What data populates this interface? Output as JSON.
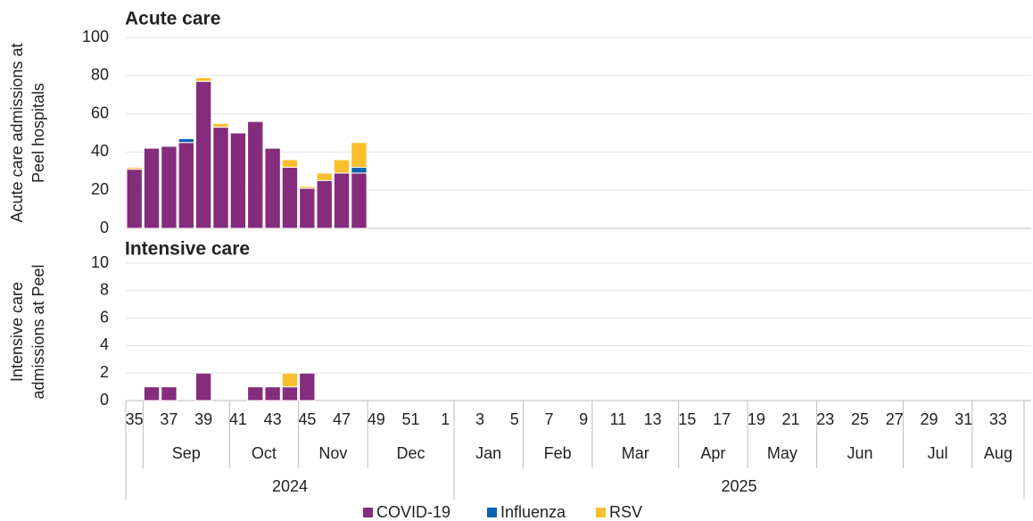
{
  "chart_data": [
    {
      "type": "bar",
      "stacked": true,
      "title": "Acute care",
      "ylabel": [
        "Acute care admissions at",
        "Peel hospitals"
      ],
      "ylim": [
        0,
        100
      ],
      "yticks": [
        0,
        20,
        40,
        60,
        80,
        100
      ],
      "grid": true,
      "series": [
        {
          "name": "COVID-19",
          "color": "#852c7c",
          "values": [
            31,
            42,
            43,
            45,
            77,
            53,
            50,
            56,
            42,
            32,
            21,
            25,
            29,
            29,
            null,
            null,
            null,
            null,
            null,
            null,
            null,
            null,
            null,
            null,
            null,
            null,
            null,
            null,
            null,
            null,
            null,
            null,
            null,
            null,
            null,
            null,
            null,
            null,
            null,
            null,
            null,
            null,
            null,
            null,
            null,
            null,
            null,
            null,
            null,
            null,
            null,
            null
          ]
        },
        {
          "name": "Influenza",
          "color": "#0b62b0",
          "values": [
            0,
            0,
            0,
            2,
            0,
            0,
            0,
            0,
            0,
            0,
            0,
            0,
            0,
            3,
            null,
            null,
            null,
            null,
            null,
            null,
            null,
            null,
            null,
            null,
            null,
            null,
            null,
            null,
            null,
            null,
            null,
            null,
            null,
            null,
            null,
            null,
            null,
            null,
            null,
            null,
            null,
            null,
            null,
            null,
            null,
            null,
            null,
            null,
            null,
            null,
            null,
            null
          ]
        },
        {
          "name": "RSV",
          "color": "#f9bf2d",
          "values": [
            1,
            0,
            0,
            0,
            2,
            2,
            0,
            0,
            0,
            4,
            1,
            4,
            7,
            13,
            null,
            null,
            null,
            null,
            null,
            null,
            null,
            null,
            null,
            null,
            null,
            null,
            null,
            null,
            null,
            null,
            null,
            null,
            null,
            null,
            null,
            null,
            null,
            null,
            null,
            null,
            null,
            null,
            null,
            null,
            null,
            null,
            null,
            null,
            null,
            null,
            null,
            null
          ]
        }
      ]
    },
    {
      "type": "bar",
      "stacked": true,
      "title": "Intensive care",
      "ylabel": [
        "Intensive care",
        "admissions at Peel"
      ],
      "ylim": [
        0,
        10
      ],
      "yticks": [
        0,
        2,
        4,
        6,
        8,
        10
      ],
      "grid": true,
      "categories": [
        "35",
        null,
        "37",
        null,
        "39",
        null,
        "41",
        null,
        "43",
        null,
        "45",
        null,
        "47",
        null,
        "49",
        null,
        "51",
        null,
        "1",
        null,
        "3",
        null,
        "5",
        null,
        "7",
        null,
        "9",
        null,
        "11",
        null,
        "13",
        null,
        "15",
        null,
        "17",
        null,
        "19",
        null,
        "21",
        null,
        "23",
        null,
        "25",
        null,
        "27",
        null,
        "29",
        null,
        "31",
        null,
        "33",
        null
      ],
      "month_groups": [
        {
          "label": null,
          "span": 1
        },
        {
          "label": "Sep",
          "span": 5
        },
        {
          "label": "Oct",
          "span": 4
        },
        {
          "label": "Nov",
          "span": 4
        },
        {
          "label": "Dec",
          "span": 5
        },
        {
          "label": "Jan",
          "span": 4
        },
        {
          "label": "Feb",
          "span": 4
        },
        {
          "label": "Mar",
          "span": 5
        },
        {
          "label": "Apr",
          "span": 4
        },
        {
          "label": "May",
          "span": 4
        },
        {
          "label": "Jun",
          "span": 5
        },
        {
          "label": "Jul",
          "span": 4
        },
        {
          "label": "Aug",
          "span": 3
        }
      ],
      "year_groups": [
        {
          "label": "2024",
          "span": 19
        },
        {
          "label": "2025",
          "span": 33
        }
      ],
      "series": [
        {
          "values": [
            0,
            1,
            1,
            0,
            2,
            0,
            0,
            1,
            1,
            1,
            2,
            0,
            0,
            0,
            null,
            null,
            null,
            null,
            null,
            null,
            null,
            null,
            null,
            null,
            null,
            null,
            null,
            null,
            null,
            null,
            null,
            null,
            null,
            null,
            null,
            null,
            null,
            null,
            null,
            null,
            null,
            null,
            null,
            null,
            null,
            null,
            null,
            null,
            null,
            null,
            null,
            null
          ]
        },
        {
          "values": [
            0,
            0,
            0,
            0,
            0,
            0,
            0,
            0,
            0,
            0,
            0,
            0,
            0,
            0,
            null,
            null,
            null,
            null,
            null,
            null,
            null,
            null,
            null,
            null,
            null,
            null,
            null,
            null,
            null,
            null,
            null,
            null,
            null,
            null,
            null,
            null,
            null,
            null,
            null,
            null,
            null,
            null,
            null,
            null,
            null,
            null,
            null,
            null,
            null,
            null,
            null,
            null
          ]
        },
        {
          "values": [
            0,
            0,
            0,
            0,
            0,
            0,
            0,
            0,
            0,
            1,
            0,
            0,
            0,
            0,
            null,
            null,
            null,
            null,
            null,
            null,
            null,
            null,
            null,
            null,
            null,
            null,
            null,
            null,
            null,
            null,
            null,
            null,
            null,
            null,
            null,
            null,
            null,
            null,
            null,
            null,
            null,
            null,
            null,
            null,
            null,
            null,
            null,
            null,
            null,
            null,
            null,
            null
          ]
        }
      ]
    }
  ]
}
